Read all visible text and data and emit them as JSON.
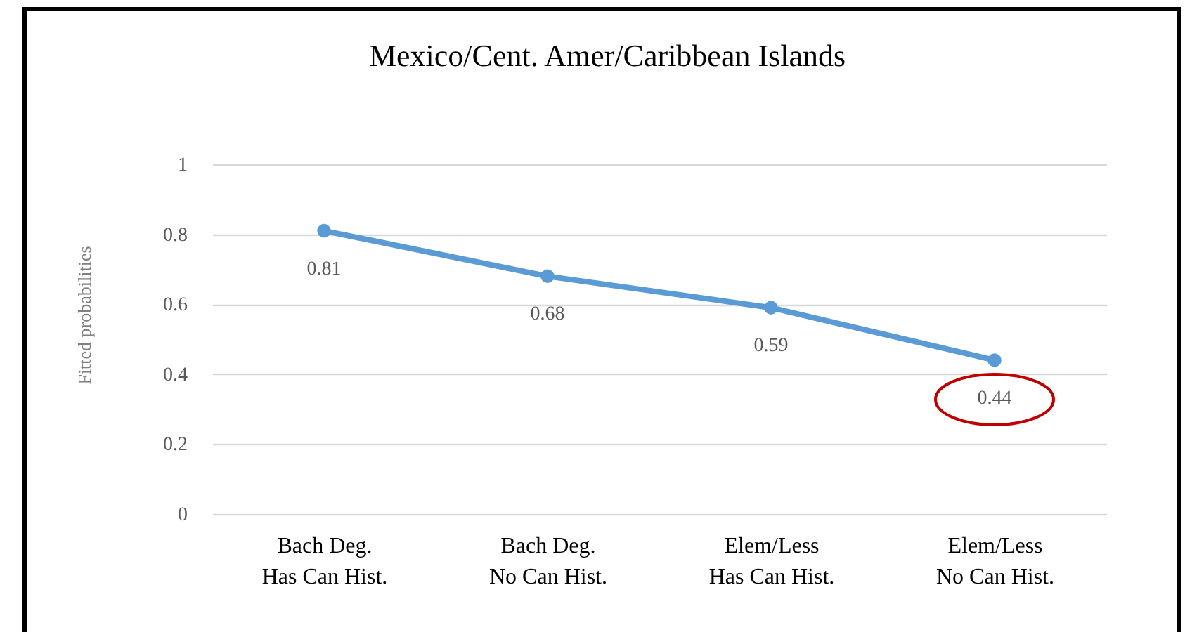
{
  "chart_data": {
    "type": "line",
    "title": "Mexico/Cent. Amer/Caribbean Islands",
    "ylabel": "Fitted probabilities",
    "categories": [
      "Bach Deg.\nHas Can Hist.",
      "Bach Deg.\nNo Can Hist.",
      "Elem/Less\nHas Can Hist.",
      "Elem/Less\nNo Can Hist."
    ],
    "series": [
      {
        "color": "#5b9bd5",
        "values": [
          0.81,
          0.68,
          0.59,
          0.44
        ]
      }
    ],
    "ylim": [
      0,
      1
    ],
    "yticks": [
      0,
      0.2,
      0.4,
      0.6,
      0.8,
      1
    ],
    "grid": "y",
    "marker": "circle",
    "line_style": "solid",
    "data_labels": true
  }
}
